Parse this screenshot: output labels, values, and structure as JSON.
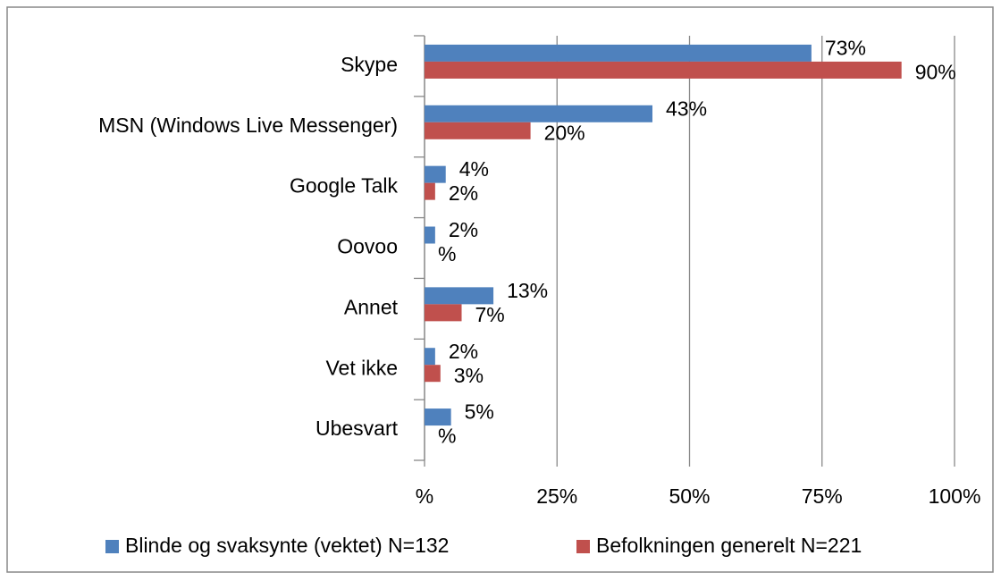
{
  "chart_data": {
    "type": "bar",
    "orientation": "horizontal",
    "categories": [
      "Skype",
      "MSN (Windows Live Messenger)",
      "Google Talk",
      "Oovoo",
      "Annet",
      "Vet ikke",
      "Ubesvart"
    ],
    "series": [
      {
        "name": "Blinde og svaksynte (vektet) N=132",
        "color": "#4f81bd",
        "values": [
          73,
          43,
          4,
          2,
          13,
          2,
          5
        ],
        "value_labels": [
          "73%",
          "43%",
          "4%",
          "2%",
          "13%",
          "2%",
          "5%"
        ]
      },
      {
        "name": "Befolkningen generelt N=221",
        "color": "#c0504d",
        "values": [
          90,
          20,
          2,
          0,
          7,
          3,
          0
        ],
        "value_labels": [
          "90%",
          "20%",
          "2%",
          "%",
          "7%",
          "3%",
          "%"
        ]
      }
    ],
    "xlim": [
      0,
      100
    ],
    "xticks": [
      {
        "value": 0,
        "label": "%"
      },
      {
        "value": 25,
        "label": "25%"
      },
      {
        "value": 50,
        "label": "50%"
      },
      {
        "value": 75,
        "label": "75%"
      },
      {
        "value": 100,
        "label": "100%"
      }
    ],
    "grid": true,
    "legend": "bottom"
  }
}
